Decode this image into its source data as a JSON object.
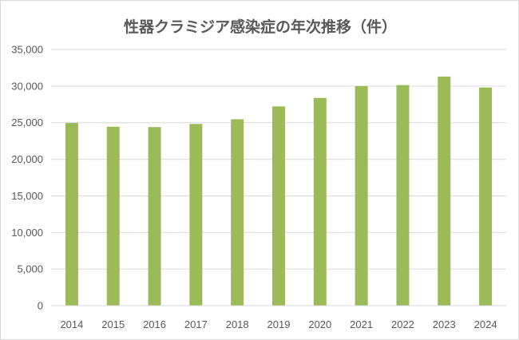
{
  "chart_data": {
    "type": "bar",
    "title": "性器クラミジア感染症の年次推移（件）",
    "categories": [
      "2014",
      "2015",
      "2016",
      "2017",
      "2018",
      "2019",
      "2020",
      "2021",
      "2022",
      "2023",
      "2024"
    ],
    "values": [
      24960,
      24450,
      24400,
      24830,
      25470,
      27220,
      28380,
      30000,
      30140,
      31300,
      29800
    ],
    "ylim": [
      0,
      35000
    ],
    "yticks": [
      0,
      5000,
      10000,
      15000,
      20000,
      25000,
      30000,
      35000
    ],
    "ytick_labels": [
      "0",
      "5,000",
      "10,000",
      "15,000",
      "20,000",
      "25,000",
      "30,000",
      "35,000"
    ],
    "grid": true,
    "legend": "none",
    "bar_color": "#9bbb59",
    "grid_color": "#d9d9d9"
  }
}
